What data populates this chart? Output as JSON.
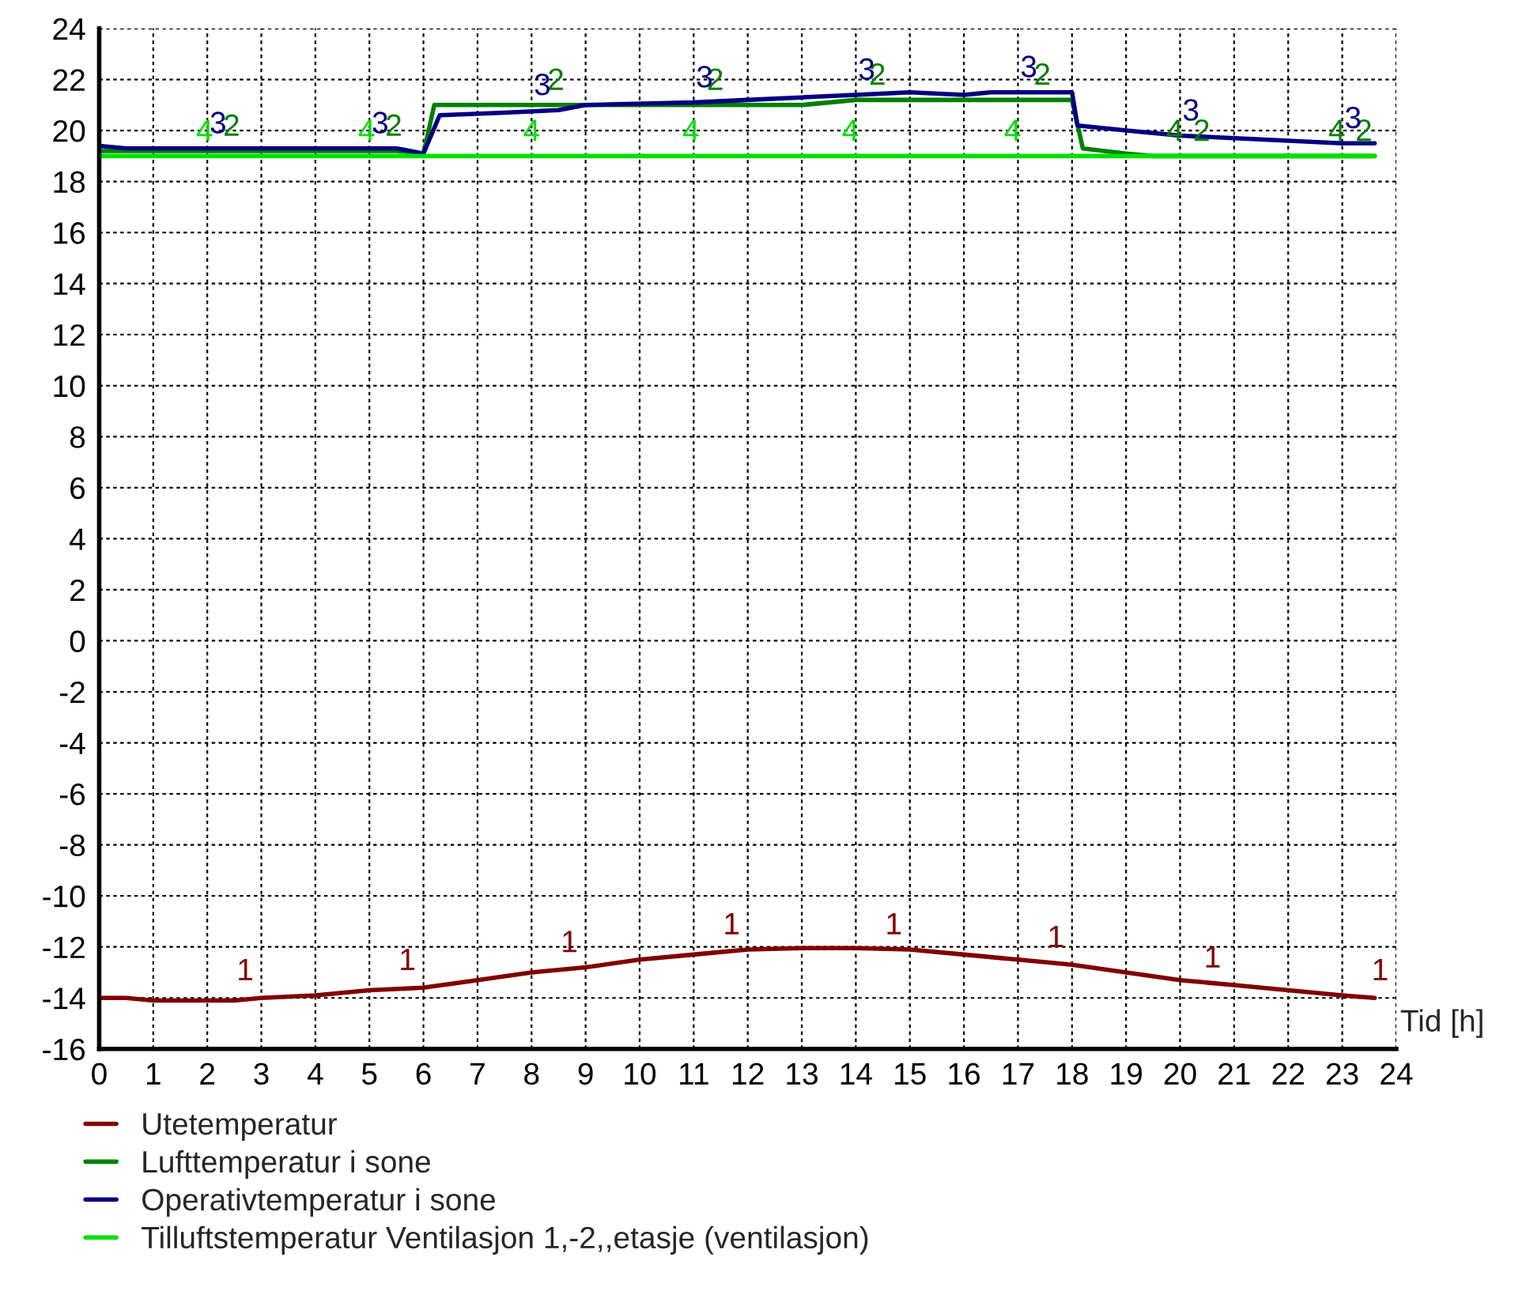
{
  "chart_data": {
    "type": "line",
    "xlabel": "Tid [h]",
    "xlim": [
      0,
      24
    ],
    "ylim": [
      -16,
      24
    ],
    "xticks": [
      0,
      1,
      2,
      3,
      4,
      5,
      6,
      7,
      8,
      9,
      10,
      11,
      12,
      13,
      14,
      15,
      16,
      17,
      18,
      19,
      20,
      21,
      22,
      23,
      24
    ],
    "yticks": [
      -16,
      -14,
      -12,
      -10,
      -8,
      -6,
      -4,
      -2,
      0,
      2,
      4,
      6,
      8,
      10,
      12,
      14,
      16,
      18,
      20,
      22,
      24
    ],
    "grid": true,
    "legend": "bottom",
    "marker": "none",
    "line_style": "solid",
    "series": [
      {
        "name": "Utetemperatur",
        "color": "#800000",
        "x": [
          0,
          0.5,
          1,
          2,
          2.5,
          3,
          4,
          5,
          6,
          7,
          8,
          9,
          10,
          11,
          12,
          13,
          14,
          15,
          16,
          17,
          18,
          19,
          20,
          21,
          22,
          23,
          23.6
        ],
        "values": [
          -14.0,
          -14.0,
          -14.1,
          -14.1,
          -14.1,
          -14.0,
          -13.9,
          -13.7,
          -13.6,
          -13.3,
          -13.0,
          -12.8,
          -12.5,
          -12.3,
          -12.1,
          -12.05,
          -12.05,
          -12.1,
          -12.3,
          -12.5,
          -12.7,
          -13.0,
          -13.3,
          -13.5,
          -13.7,
          -13.9,
          -14.0
        ]
      },
      {
        "name": "Lufttemperatur i sone",
        "color": "#008000",
        "x": [
          0,
          5.5,
          6.0,
          6.2,
          8,
          13,
          13.5,
          14,
          17.5,
          18.0,
          18.2,
          19,
          19.5,
          23.6
        ],
        "values": [
          19.2,
          19.2,
          19.1,
          21.0,
          21.0,
          21.0,
          21.1,
          21.2,
          21.2,
          21.2,
          19.3,
          19.1,
          19.0,
          19.0
        ]
      },
      {
        "name": "Operativtemperatur i sone",
        "color": "#000080",
        "x": [
          0,
          0.5,
          5.5,
          6.0,
          6.3,
          7.5,
          8.5,
          9,
          11,
          12,
          13,
          14,
          15,
          16,
          16.5,
          18.0,
          18.1,
          19,
          20,
          21,
          22,
          23,
          23.6
        ],
        "values": [
          19.4,
          19.3,
          19.3,
          19.1,
          20.6,
          20.7,
          20.8,
          21.0,
          21.1,
          21.2,
          21.3,
          21.4,
          21.5,
          21.4,
          21.5,
          21.5,
          20.2,
          20.0,
          19.8,
          19.7,
          19.6,
          19.5,
          19.5
        ]
      },
      {
        "name": "Tilluftstemperatur Ventilasjon 1,-2,,etasje (ventilasjon)",
        "color": "#00e000",
        "x": [
          0,
          23.6
        ],
        "values": [
          19.0,
          19.0
        ]
      }
    ],
    "annotations": [
      {
        "text": "1",
        "x": 2.7,
        "y": -13.9
      },
      {
        "text": "1",
        "x": 5.7,
        "y": -13.5
      },
      {
        "text": "1",
        "x": 8.7,
        "y": -12.8
      },
      {
        "text": "1",
        "x": 11.7,
        "y": -12.1
      },
      {
        "text": "1",
        "x": 14.7,
        "y": -12.1
      },
      {
        "text": "1",
        "x": 17.7,
        "y": -12.6
      },
      {
        "text": "1",
        "x": 20.6,
        "y": -13.4
      },
      {
        "text": "1",
        "x": 23.7,
        "y": -13.9
      },
      {
        "text": "2",
        "x": 2.45,
        "y": 19.2
      },
      {
        "text": "2",
        "x": 5.45,
        "y": 19.2
      },
      {
        "text": "2",
        "x": 8.45,
        "y": 21.0
      },
      {
        "text": "2",
        "x": 11.4,
        "y": 21.0
      },
      {
        "text": "2",
        "x": 14.4,
        "y": 21.2
      },
      {
        "text": "2",
        "x": 17.45,
        "y": 21.2
      },
      {
        "text": "2",
        "x": 20.4,
        "y": 19.0
      },
      {
        "text": "2",
        "x": 23.4,
        "y": 19.0
      },
      {
        "text": "3",
        "x": 2.2,
        "y": 19.3
      },
      {
        "text": "3",
        "x": 5.2,
        "y": 19.3
      },
      {
        "text": "3",
        "x": 8.2,
        "y": 20.8
      },
      {
        "text": "3",
        "x": 11.2,
        "y": 21.1
      },
      {
        "text": "3",
        "x": 14.2,
        "y": 21.4
      },
      {
        "text": "3",
        "x": 17.2,
        "y": 21.5
      },
      {
        "text": "3",
        "x": 20.2,
        "y": 19.8
      },
      {
        "text": "3",
        "x": 23.2,
        "y": 19.5
      },
      {
        "text": "4",
        "x": 1.95,
        "y": 19.0
      },
      {
        "text": "4",
        "x": 4.95,
        "y": 19.0
      },
      {
        "text": "4",
        "x": 8.0,
        "y": 19.0
      },
      {
        "text": "4",
        "x": 10.95,
        "y": 19.0
      },
      {
        "text": "4",
        "x": 13.9,
        "y": 19.0
      },
      {
        "text": "4",
        "x": 16.9,
        "y": 19.0
      },
      {
        "text": "4",
        "x": 19.9,
        "y": 19.0
      },
      {
        "text": "4",
        "x": 22.9,
        "y": 19.0
      }
    ]
  }
}
